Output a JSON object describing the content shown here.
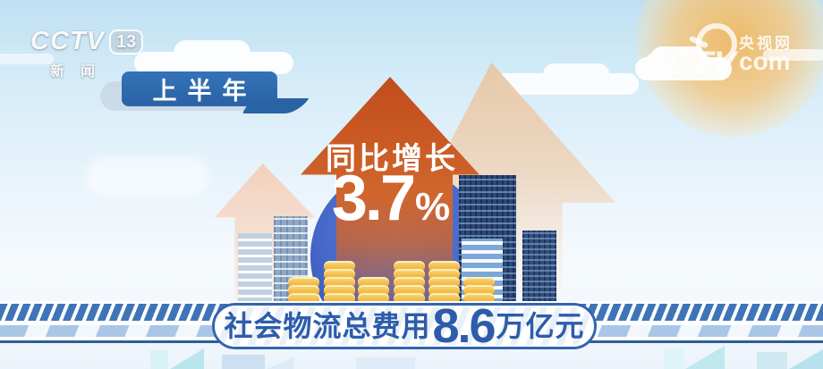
{
  "channel_logo": {
    "brand": "CCTV",
    "number": "13",
    "caption": "新闻"
  },
  "site_watermark": {
    "site_name": "央视网",
    "brand": "CCTV",
    "domain": "com"
  },
  "badge": {
    "label": "上半年"
  },
  "growth": {
    "label": "同比增长",
    "number": "3.7",
    "percent_sign": "%"
  },
  "banner": {
    "prefix": "社会物流总费用",
    "value": "8.6",
    "unit": "万亿元"
  },
  "illustration": {
    "coin_stacks": [
      3,
      5,
      3,
      5,
      5,
      3
    ]
  },
  "colors": {
    "arrow_orange": "#ca5a24",
    "arrow_peach": "#ecd3b9",
    "badge_blue": "#2e6bb0",
    "banner_text_blue": "#2d5cab",
    "coin_gold": "#f3bb4a",
    "band_stripe_blue": "#3f74b8",
    "circle_blue": "#4466c8",
    "sun_orange": "#f1b863"
  },
  "chart_data": {
    "type": "table",
    "period": "上半年",
    "rows": [
      {
        "metric": "社会物流总费用",
        "value": 8.6,
        "unit": "万亿元",
        "yoy_growth_pct": 3.7
      }
    ],
    "annotations": [
      "上半年",
      "同比增长 3.7%",
      "社会物流总费用8.6万亿元"
    ]
  }
}
